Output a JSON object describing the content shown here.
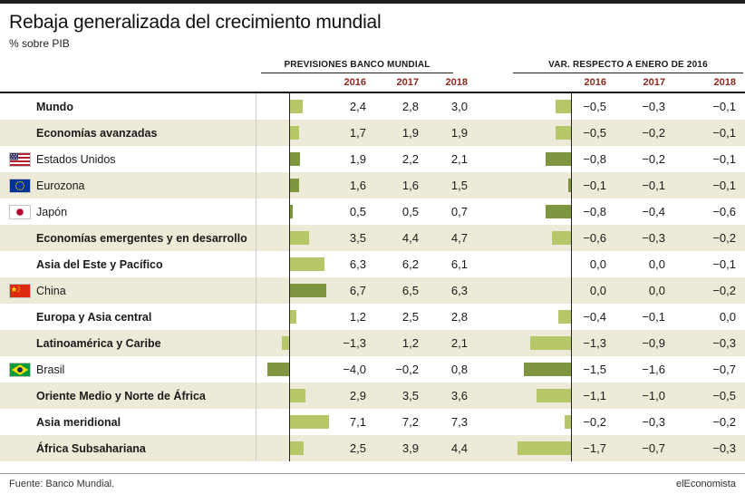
{
  "header": {
    "title": "Rebaja generalizada del crecimiento mundial",
    "subtitle": "% sobre PIB",
    "group1_label": "PREVISIONES BANCO MUNDIAL",
    "group2_label": "VAR. RESPECTO A ENERO DE 2016",
    "years": [
      "2016",
      "2017",
      "2018"
    ]
  },
  "footer": {
    "source": "Fuente: Banco Mundial.",
    "brand": "elEconomista"
  },
  "colors": {
    "row_alt": "#edead8",
    "bar_light": "#b5c768",
    "bar_dark": "#7d963f",
    "year_text": "#8c2a20",
    "top_rule": "#1d1d1b"
  },
  "chart_data": {
    "type": "bar",
    "title": "Rebaja generalizada del crecimiento mundial",
    "subtitle": "% sobre PIB",
    "groups": [
      "PREVISIONES BANCO MUNDIAL",
      "VAR. RESPECTO A ENERO DE 2016"
    ],
    "years": [
      "2016",
      "2017",
      "2018"
    ],
    "legend_note": "horizontal bars depict the 2016 value of each group; light bars = aggregate rows, dark bars = country rows",
    "rows": [
      {
        "label": "Mundo",
        "bold": true,
        "flag": null,
        "previsiones": [
          2.4,
          2.8,
          3.0
        ],
        "variacion": [
          -0.5,
          -0.3,
          -0.1
        ]
      },
      {
        "label": "Economías avanzadas",
        "bold": true,
        "flag": null,
        "previsiones": [
          1.7,
          1.9,
          1.9
        ],
        "variacion": [
          -0.5,
          -0.2,
          -0.1
        ]
      },
      {
        "label": "Estados Unidos",
        "bold": false,
        "flag": "us",
        "previsiones": [
          1.9,
          2.2,
          2.1
        ],
        "variacion": [
          -0.8,
          -0.2,
          -0.1
        ]
      },
      {
        "label": "Eurozona",
        "bold": false,
        "flag": "eu",
        "previsiones": [
          1.6,
          1.6,
          1.5
        ],
        "variacion": [
          -0.1,
          -0.1,
          -0.1
        ]
      },
      {
        "label": "Japón",
        "bold": false,
        "flag": "jp",
        "previsiones": [
          0.5,
          0.5,
          0.7
        ],
        "variacion": [
          -0.8,
          -0.4,
          -0.6
        ]
      },
      {
        "label": "Economías emergentes y en desarrollo",
        "bold": true,
        "flag": null,
        "previsiones": [
          3.5,
          4.4,
          4.7
        ],
        "variacion": [
          -0.6,
          -0.3,
          -0.2
        ]
      },
      {
        "label": "Asia del Este y Pacífico",
        "bold": true,
        "flag": null,
        "previsiones": [
          6.3,
          6.2,
          6.1
        ],
        "variacion": [
          0.0,
          0.0,
          -0.1
        ]
      },
      {
        "label": "China",
        "bold": false,
        "flag": "cn",
        "previsiones": [
          6.7,
          6.5,
          6.3
        ],
        "variacion": [
          0.0,
          0.0,
          -0.2
        ]
      },
      {
        "label": "Europa y Asia central",
        "bold": true,
        "flag": null,
        "previsiones": [
          1.2,
          2.5,
          2.8
        ],
        "variacion": [
          -0.4,
          -0.1,
          0.0
        ]
      },
      {
        "label": "Latinoamérica y Caribe",
        "bold": true,
        "flag": null,
        "previsiones": [
          -1.3,
          1.2,
          2.1
        ],
        "variacion": [
          -1.3,
          -0.9,
          -0.3
        ]
      },
      {
        "label": "Brasil",
        "bold": false,
        "flag": "br",
        "previsiones": [
          -4.0,
          -0.2,
          0.8
        ],
        "variacion": [
          -1.5,
          -1.6,
          -0.7
        ]
      },
      {
        "label": "Oriente Medio y Norte de África",
        "bold": true,
        "flag": null,
        "previsiones": [
          2.9,
          3.5,
          3.6
        ],
        "variacion": [
          -1.1,
          -1.0,
          -0.5
        ]
      },
      {
        "label": "Asia meridional",
        "bold": true,
        "flag": null,
        "previsiones": [
          7.1,
          7.2,
          7.3
        ],
        "variacion": [
          -0.2,
          -0.3,
          -0.2
        ]
      },
      {
        "label": "África Subsahariana",
        "bold": true,
        "flag": null,
        "previsiones": [
          2.5,
          3.9,
          4.4
        ],
        "variacion": [
          -1.7,
          -0.7,
          -0.3
        ]
      }
    ]
  }
}
